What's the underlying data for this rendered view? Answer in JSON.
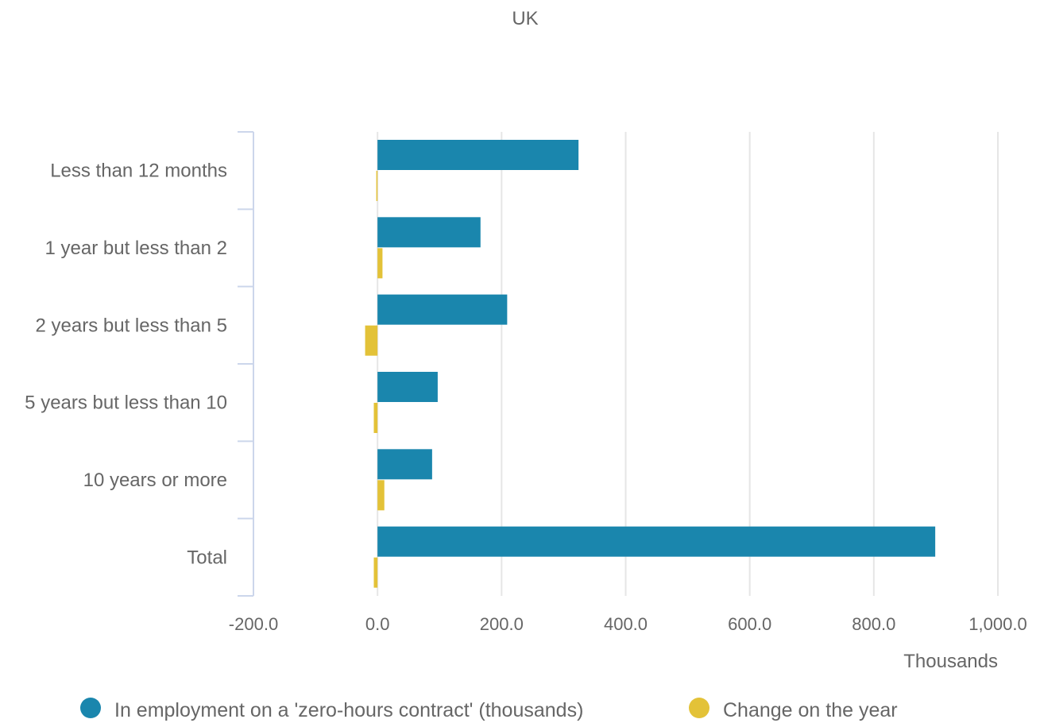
{
  "chart_data": {
    "type": "bar",
    "orientation": "horizontal",
    "title": "UK",
    "categories": [
      "Less than 12 months",
      "1 year but less than 2",
      "2 years but less than 5",
      "5 years but less than 10",
      "10 years or more",
      "Total"
    ],
    "series": [
      {
        "name": "In employment on a 'zero-hours contract' (thousands)",
        "color": "#1a86ad",
        "values": [
          324,
          166,
          209,
          97,
          88,
          899
        ]
      },
      {
        "name": "Change on the year",
        "color": "#e3c238",
        "values": [
          -2,
          8,
          -20,
          -6,
          11,
          -6
        ]
      }
    ],
    "xlim": [
      -200,
      1000
    ],
    "xticks": [
      -200,
      0,
      200,
      400,
      600,
      800,
      1000
    ],
    "xtick_labels": [
      "-200.0",
      "0.0",
      "200.0",
      "400.0",
      "600.0",
      "800.0",
      "1,000.0"
    ],
    "xlabel": "Thousands",
    "grid": true,
    "legend_position": "bottom"
  }
}
